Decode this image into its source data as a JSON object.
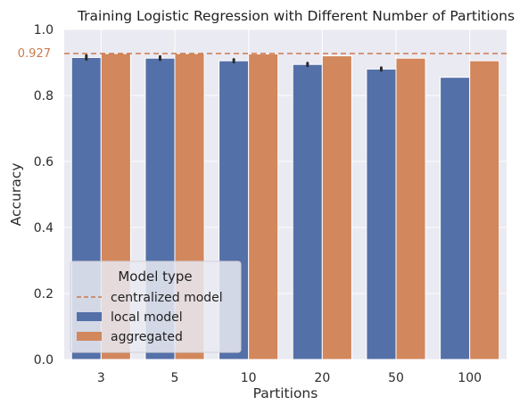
{
  "chart_data": {
    "type": "bar",
    "title": "Training Logistic Regression with Different Number of Partitions",
    "xlabel": "Partitions",
    "ylabel": "Accuracy",
    "ylim": [
      0,
      1
    ],
    "yticks": [
      0.0,
      0.2,
      0.4,
      0.6,
      0.8,
      1.0
    ],
    "ytick_labels": [
      "0.0",
      "0.2",
      "0.4",
      "0.6",
      "0.8",
      "1.0"
    ],
    "categories": [
      "3",
      "5",
      "10",
      "20",
      "50",
      "100"
    ],
    "series": [
      {
        "name": "local model",
        "color": "#5470A8",
        "values": [
          0.915,
          0.913,
          0.905,
          0.894,
          0.88,
          0.855
        ],
        "error": [
          0.006,
          0.005,
          0.004,
          0.004,
          0.004,
          0.0
        ]
      },
      {
        "name": "aggregated",
        "color": "#D2875C",
        "values": [
          0.927,
          0.927,
          0.926,
          0.92,
          0.913,
          0.905
        ]
      }
    ],
    "reference_line": {
      "name": "centralized model",
      "value": 0.927,
      "label": "0.927",
      "color": "#C97B4F"
    },
    "legend": {
      "title": "Model type",
      "placement": "lower-left"
    },
    "grid": true,
    "background": "#EAEAF2"
  }
}
